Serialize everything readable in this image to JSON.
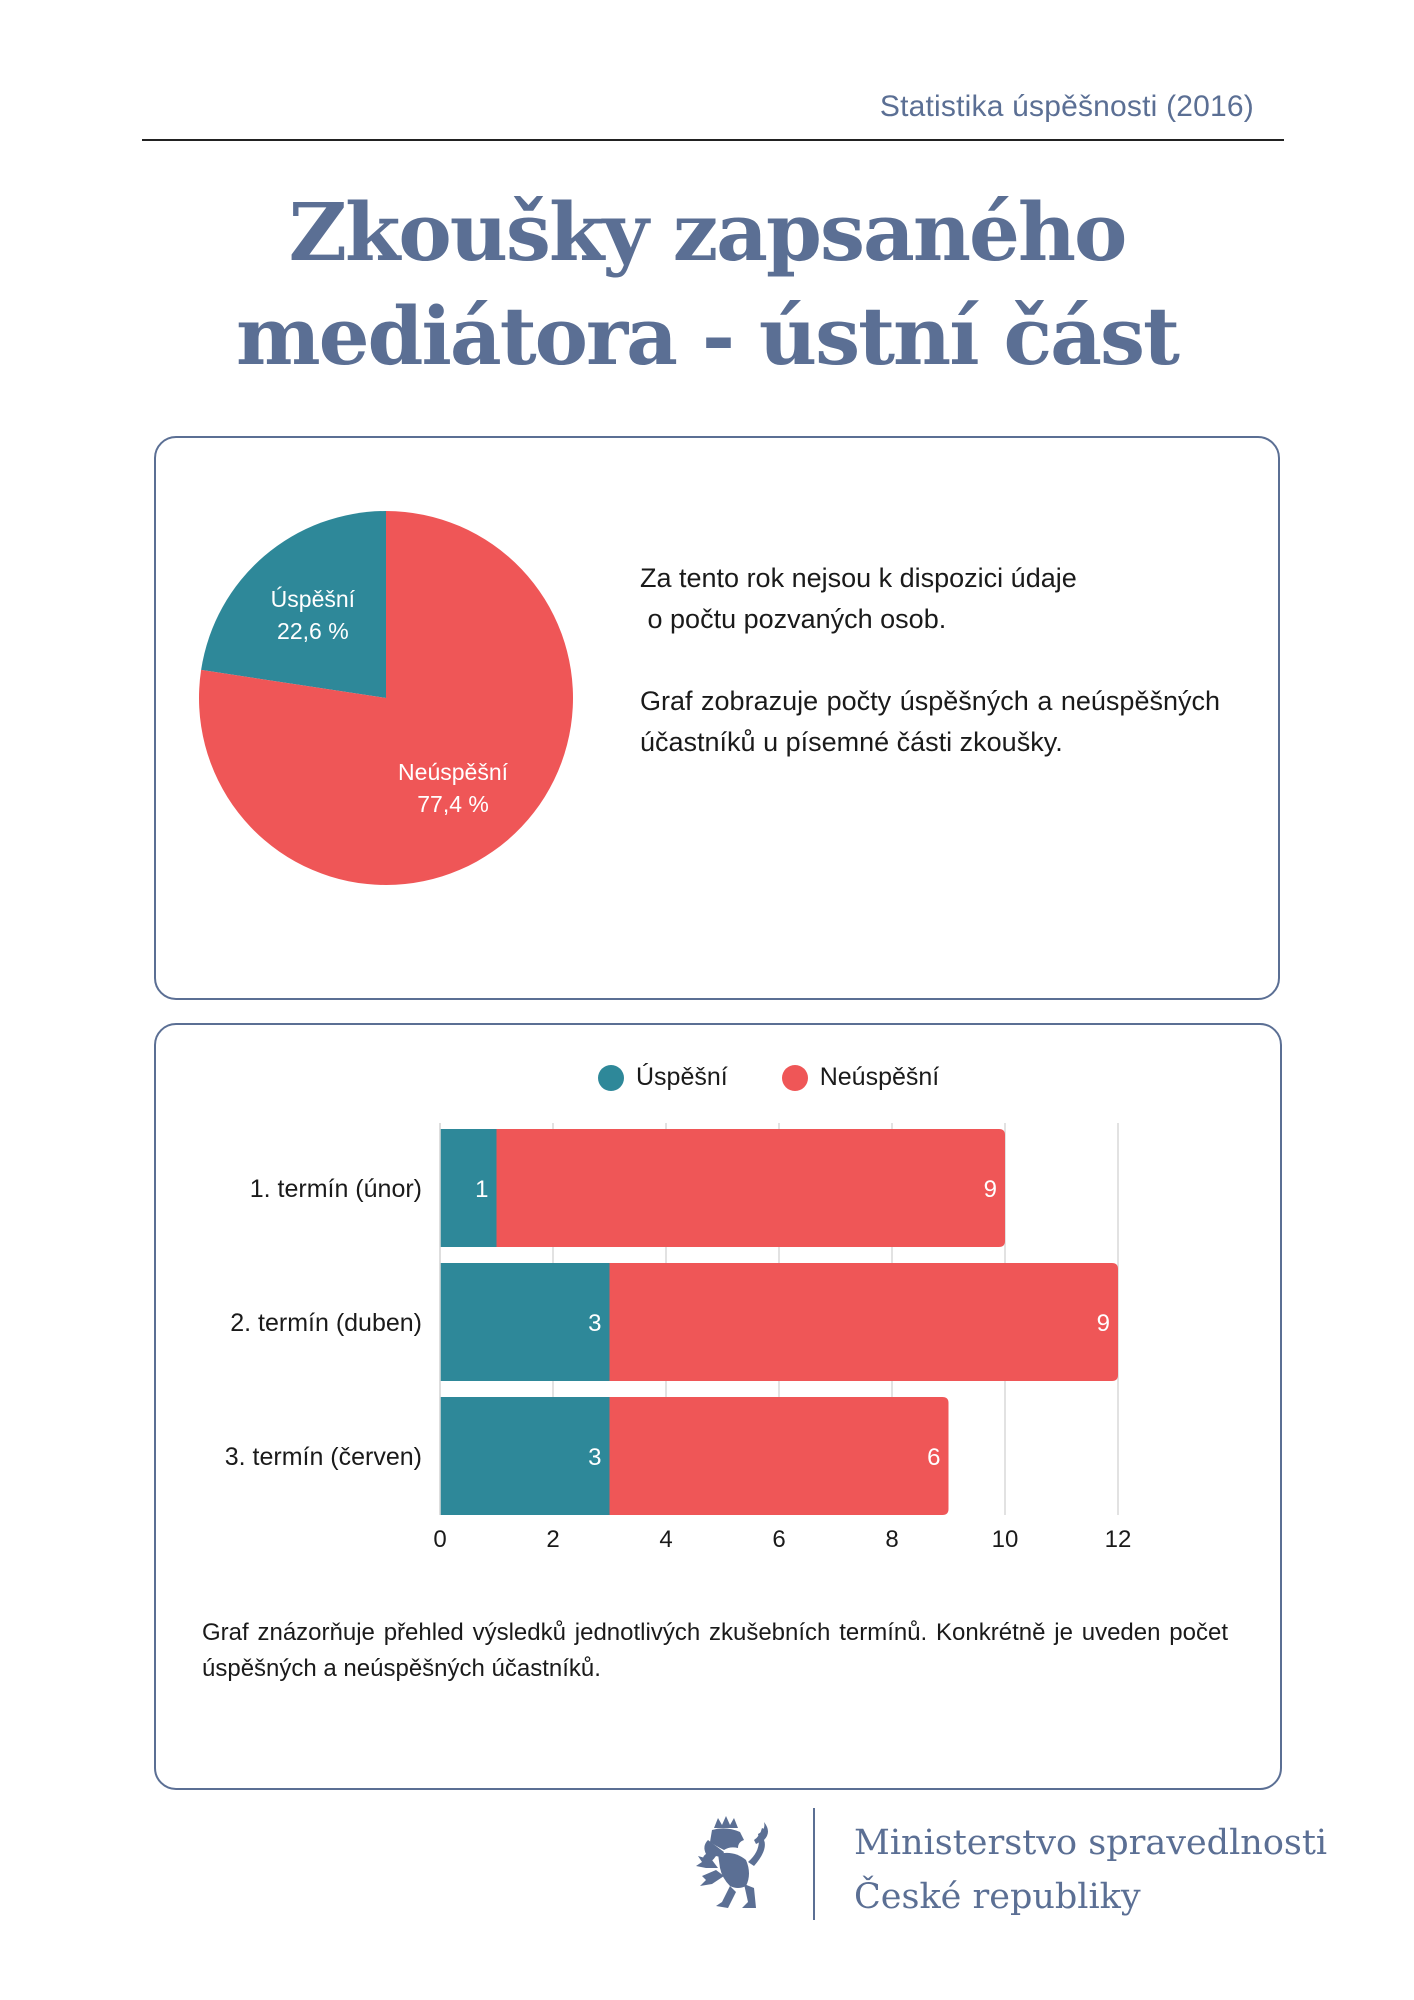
{
  "header": {
    "label": "Statistika úspěšnosti (2016)"
  },
  "title": {
    "line1": "Zkoušky zapsaného",
    "line2": "mediátora - ústní část"
  },
  "colors": {
    "success": "#2e8899",
    "fail": "#ef5657",
    "accent": "#5b6f94"
  },
  "pie_section": {
    "description_1_line1": "Za tento rok nejsou k dispozici údaje",
    "description_1_line2": "o počtu pozvaných osob.",
    "description_2": "Graf zobrazuje počty úspěšných a neúspěšných účastníků u písemné části zkoušky."
  },
  "bar_section": {
    "description": "Graf znázorňuje přehled výsledků jednotlivých zkušebních termínů. Konkrétně je uveden počet úspěšných a neúspěšných účastníků."
  },
  "footer": {
    "line1": "Ministerstvo spravedlnosti",
    "line2": "České republiky",
    "logo_icon": "czech-lion-icon"
  },
  "chart_data": [
    {
      "type": "pie",
      "slices": [
        {
          "label": "Úspěšní",
          "value": 22.6,
          "value_label": "22,6 %",
          "color": "#2e8899"
        },
        {
          "label": "Neúspěšní",
          "value": 77.4,
          "value_label": "77,4 %",
          "color": "#ef5657"
        }
      ]
    },
    {
      "type": "bar",
      "orientation": "horizontal",
      "stacked": true,
      "categories": [
        "1. termín (únor)",
        "2. termín (duben)",
        "3. termín (červen)"
      ],
      "series": [
        {
          "name": "Úspěšní",
          "values": [
            1,
            3,
            3
          ],
          "color": "#2e8899"
        },
        {
          "name": "Neúspěšní",
          "values": [
            9,
            9,
            6
          ],
          "color": "#ef5657"
        }
      ],
      "xlim": [
        0,
        12
      ],
      "xticks": [
        0,
        2,
        4,
        6,
        8,
        10,
        12
      ],
      "grid": true,
      "legend": "top"
    }
  ]
}
